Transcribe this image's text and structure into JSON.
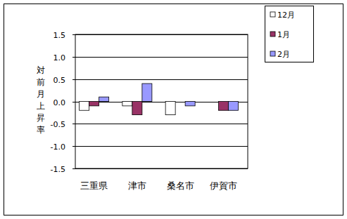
{
  "chart_data": {
    "type": "bar",
    "y_label": "対前月上昇率",
    "categories": [
      "三重県",
      "津市",
      "桑名市",
      "伊賀市"
    ],
    "series": [
      {
        "name": "12月",
        "color": "#ffffff",
        "values": [
          -0.2,
          -0.1,
          -0.3,
          0.0
        ]
      },
      {
        "name": "1月",
        "color": "#993366",
        "values": [
          -0.1,
          -0.3,
          0.0,
          -0.2
        ]
      },
      {
        "name": "2月",
        "color": "#9999ff",
        "values": [
          0.1,
          0.4,
          -0.1,
          -0.2
        ]
      }
    ],
    "ylim": [
      -1.5,
      1.5
    ],
    "yticks": [
      {
        "value": -1.5,
        "label": "-1.5"
      },
      {
        "value": -1,
        "label": "-1.0"
      },
      -0.5,
      {
        "value": 0,
        "label": "0.0"
      },
      0.5,
      {
        "value": 1,
        "label": "1.0"
      },
      1.5
    ],
    "grid": true,
    "legend": "top-right"
  }
}
